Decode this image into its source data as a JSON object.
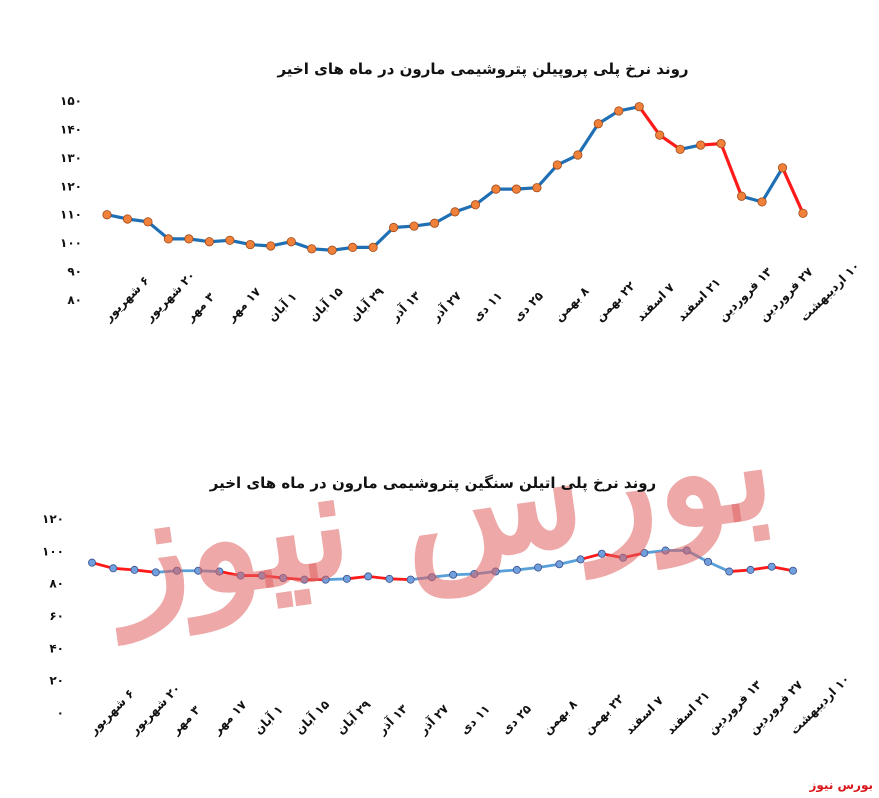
{
  "brand": {
    "label": "بورس نیوز",
    "watermark": "بورس نیوز",
    "color": "#d9161c"
  },
  "chart_data": [
    {
      "type": "line",
      "title": "روند نرخ پلی پروپیلن پتروشیمی مارون در ماه های اخیر",
      "ylim": [
        80,
        150
      ],
      "yticks": [
        "۸۰",
        "۹۰",
        "۱۰۰",
        "۱۱۰",
        "۱۲۰",
        "۱۳۰",
        "۱۴۰",
        "۱۵۰"
      ],
      "x_labels": [
        "۶ شهریور",
        "۲۰ شهریور",
        "۳ مهر",
        "۱۷ مهر",
        "۱ آبان",
        "۱۵ آبان",
        "۲۹ آبان",
        "۱۳ آذر",
        "۲۷ آذر",
        "۱۱ دی",
        "۲۵ دی",
        "۸ بهمن",
        "۲۲ بهمن",
        "۷ اسفند",
        "۲۱ اسفند",
        "۱۳ فروردین",
        "۲۷ فروردین",
        "۱۰ اردیبهشت"
      ],
      "values": [
        110,
        108.5,
        107.5,
        101.5,
        101.5,
        100.5,
        101,
        99.5,
        99,
        100.5,
        98,
        97.5,
        98.5,
        98.5,
        105.5,
        106,
        107,
        111,
        113.5,
        119,
        119,
        119.5,
        127.5,
        131,
        142,
        146.5,
        148,
        138,
        133,
        134.5,
        135,
        116.5,
        114.5,
        126.5,
        110.5
      ],
      "falling_segments": [
        26,
        27,
        29,
        30,
        33
      ],
      "grid": false,
      "colors": {
        "line": "#1f6fb5",
        "falling": "#ff1a1a",
        "marker": "#f0813a",
        "marker_edge": "#a04818"
      }
    },
    {
      "type": "line",
      "title": "روند نرخ پلی اتیلن سنگین پتروشیمی مارون در ماه های اخیر",
      "ylim": [
        0,
        120
      ],
      "yticks": [
        "۰",
        "۲۰",
        "۴۰",
        "۶۰",
        "۸۰",
        "۱۰۰",
        "۱۲۰"
      ],
      "x_labels": [
        "۶ شهریور",
        "۲۰ شهریور",
        "۳ مهر",
        "۱۷ مهر",
        "۱ آبان",
        "۱۵ آبان",
        "۲۹ آبان",
        "۱۳ آذر",
        "۲۷ آذر",
        "۱۱ دی",
        "۲۵ دی",
        "۸ بهمن",
        "۲۲ بهمن",
        "۷ اسفند",
        "۲۱ اسفند",
        "۱۳ فروردین",
        "۲۷ فروردین",
        "۱۰ اردیبهشت"
      ],
      "values": [
        93,
        89.5,
        88.5,
        87,
        88,
        88,
        87.5,
        85,
        85,
        83.5,
        82.5,
        82.5,
        83,
        84.5,
        83,
        82.5,
        84,
        85.5,
        86,
        87.5,
        88.5,
        90,
        92,
        95,
        98.5,
        96,
        99,
        100.5,
        100.5,
        93.5,
        87.5,
        88.5,
        90.5,
        88
      ],
      "falling_segments": [
        0,
        1,
        2,
        6,
        7,
        8,
        9,
        10,
        12,
        13,
        14,
        23,
        24,
        25,
        30,
        31,
        32
      ],
      "grid": false,
      "colors": {
        "line": "#5aa0d8",
        "falling": "#ff1a1a",
        "marker": "#6f9fdc",
        "marker_edge": "#3d4f8c"
      }
    }
  ]
}
